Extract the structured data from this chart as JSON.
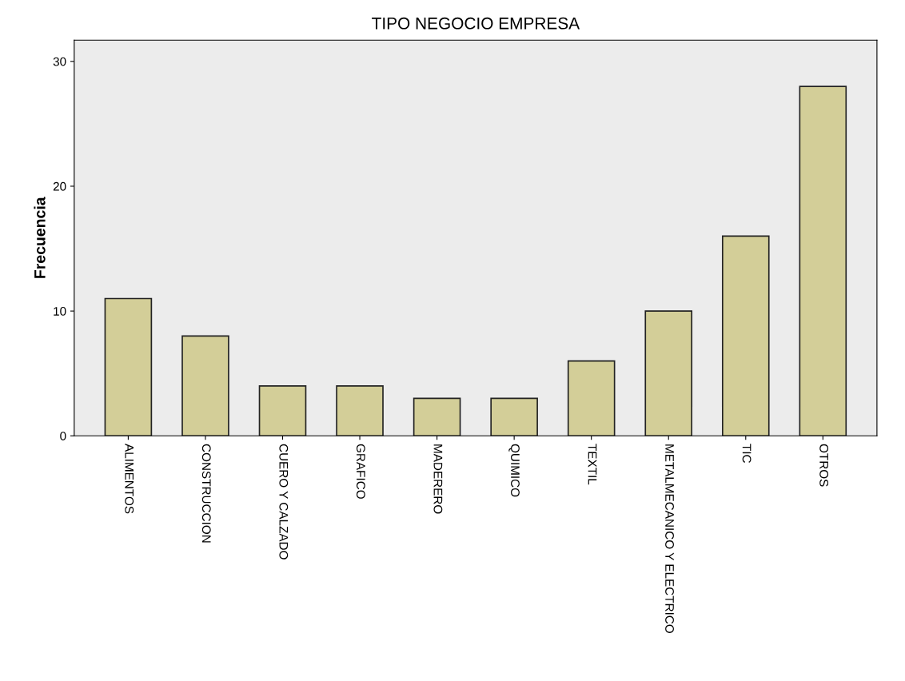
{
  "chart_data": {
    "type": "bar",
    "title": "TIPO NEGOCIO EMPRESA",
    "ylabel": "Frecuencia",
    "categories": [
      "ALIMENTOS",
      "CONSTRUCCION",
      "CUERO Y CALZADO",
      "GRAFICO",
      "MADERERO",
      "QUIMICO",
      "TEXTIL",
      "METALMECANICO Y ELECTRICO",
      "TIC",
      "OTROS"
    ],
    "values": [
      11,
      8,
      4,
      4,
      3,
      3,
      6,
      10,
      16,
      28
    ],
    "color": "#d3ce98",
    "ylim": [
      0,
      31.7
    ],
    "yticks": [
      0,
      10,
      20,
      30
    ],
    "grid": false,
    "legend": false
  }
}
